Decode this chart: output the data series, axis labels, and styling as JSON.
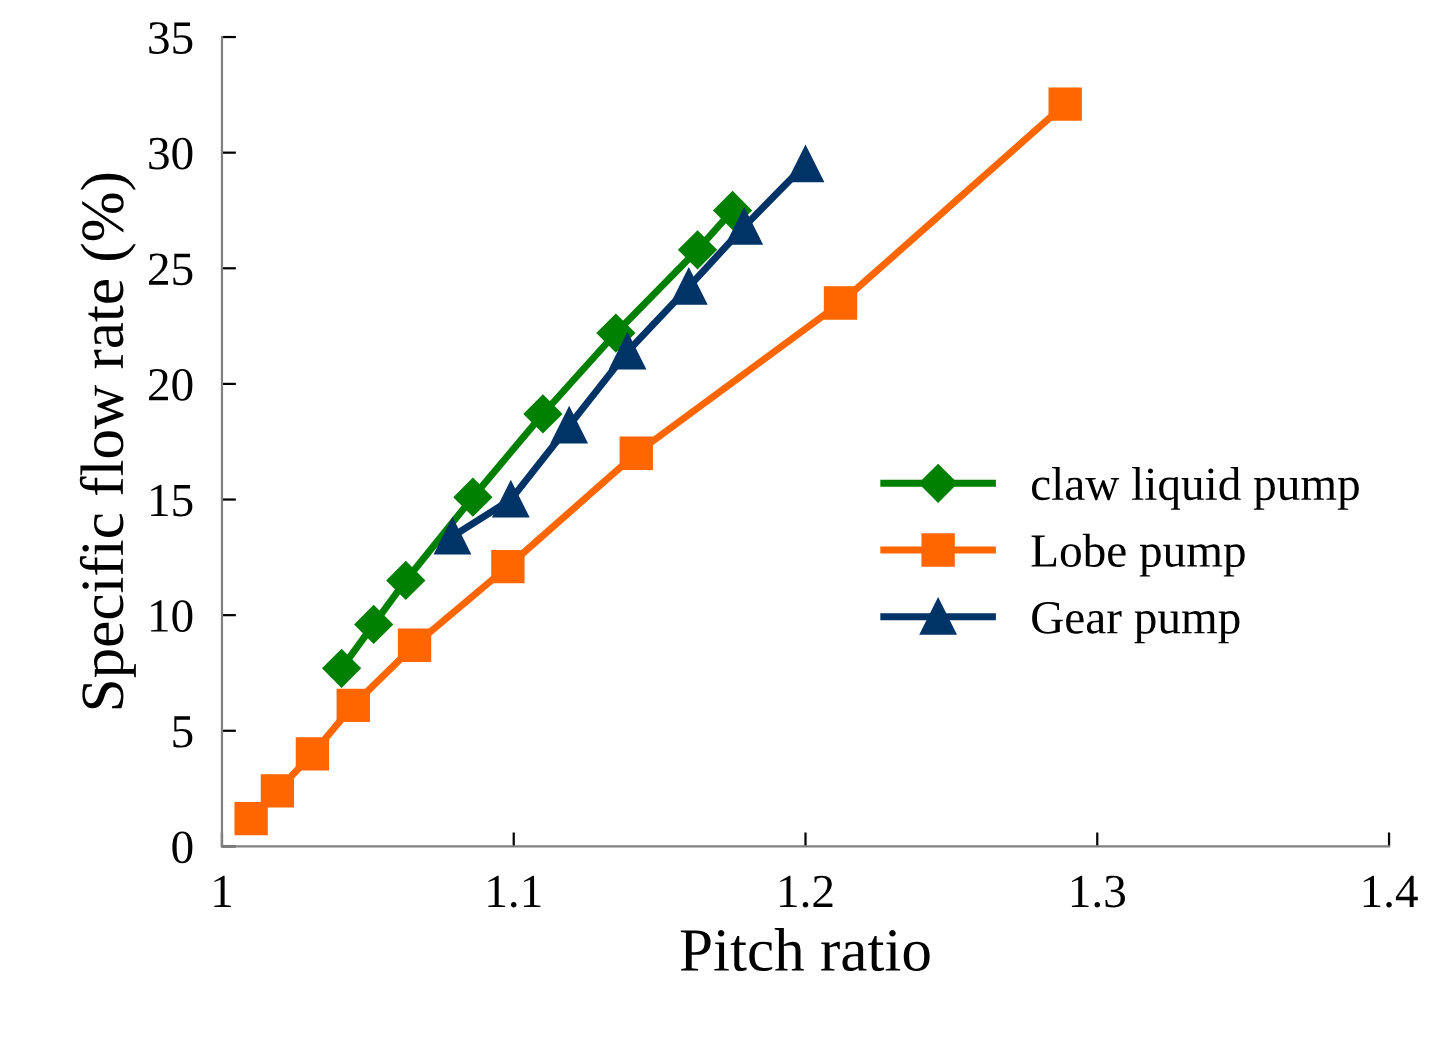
{
  "chart_data": {
    "type": "line",
    "xlabel": "Pitch ratio",
    "ylabel": "Specific flow rate (%)",
    "xlim": [
      1,
      1.4
    ],
    "xticks": [
      1,
      1.1,
      1.2,
      1.3,
      1.4
    ],
    "ylim": [
      0,
      35
    ],
    "yticks": [
      0,
      5,
      10,
      15,
      20,
      25,
      30,
      35
    ],
    "grid": false,
    "legend": "right",
    "line_style": "solid",
    "series": [
      {
        "name": "claw liquid pump",
        "color": "#008000",
        "marker": "diamond",
        "x": [
          1.041,
          1.052,
          1.063,
          1.086,
          1.11,
          1.135,
          1.163,
          1.175
        ],
        "values": [
          7.7,
          9.6,
          11.5,
          15.1,
          18.7,
          22.2,
          25.8,
          27.5
        ]
      },
      {
        "name": "Lobe pump",
        "color": "#ff6600",
        "marker": "square",
        "x": [
          1.01,
          1.019,
          1.031,
          1.045,
          1.066,
          1.098,
          1.142,
          1.212,
          1.289
        ],
        "values": [
          1.2,
          2.4,
          4.0,
          6.1,
          8.7,
          12.1,
          17.0,
          23.5,
          32.1
        ]
      },
      {
        "name": "Gear pump",
        "color": "#003366",
        "marker": "triangle",
        "x": [
          1.079,
          1.099,
          1.119,
          1.139,
          1.16,
          1.179,
          1.2
        ],
        "values": [
          13.4,
          15.0,
          18.2,
          21.4,
          24.2,
          26.8,
          29.5
        ]
      }
    ]
  }
}
